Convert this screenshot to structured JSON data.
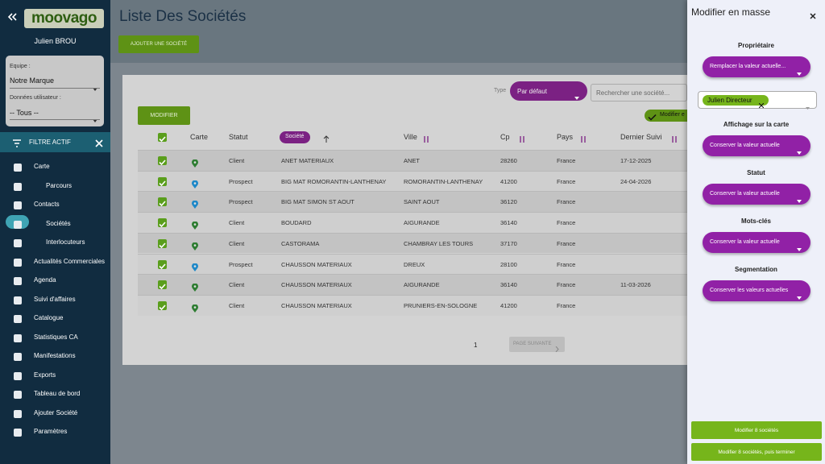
{
  "sidebar": {
    "logo": "moovago",
    "user": "Julien BROU",
    "team_label": "Equipe :",
    "team_value": "Notre Marque",
    "user_data_label": "Données utilisateur :",
    "user_data_value": "-- Tous --",
    "filter": "FILTRE ACTIF",
    "menu": [
      {
        "label": "Carte",
        "sub": false
      },
      {
        "label": "Parcours",
        "sub": true
      },
      {
        "label": "Contacts",
        "sub": false
      },
      {
        "label": "Sociétés",
        "sub": true,
        "active": true
      },
      {
        "label": "Interlocuteurs",
        "sub": true
      },
      {
        "label": "Actualités Commerciales",
        "sub": false
      },
      {
        "label": "Agenda",
        "sub": false
      },
      {
        "label": "Suivi d'affaires",
        "sub": false
      },
      {
        "label": "Catalogue",
        "sub": false
      },
      {
        "label": "Statistiques CA",
        "sub": false
      },
      {
        "label": "Manifestations",
        "sub": false
      },
      {
        "label": "Exports",
        "sub": false
      },
      {
        "label": "Tableau de bord",
        "sub": false
      },
      {
        "label": "Ajouter Société",
        "sub": false
      },
      {
        "label": "Paramètres",
        "sub": false
      }
    ]
  },
  "header": {
    "title": "Liste Des Sociétés",
    "add_button": "AJOUTER UNE SOCIÉTÉ"
  },
  "toolbar": {
    "type_label": "Type",
    "type_value": "Par défaut",
    "search_placeholder": "Rechercher une société...",
    "modify_button": "MODIFIER",
    "modify_chip": "Modifier e"
  },
  "table": {
    "columns": [
      "Carte",
      "Statut",
      "Société",
      "Ville",
      "Cp",
      "Pays",
      "Dernier Suivi"
    ],
    "rows": [
      {
        "status": "Client",
        "company": "ANET MATERIAUX",
        "city": "ANET",
        "cp": "28260",
        "country": "France",
        "last": "17-12-2025",
        "pin": "#2e7d32"
      },
      {
        "status": "Prospect",
        "company": "BIG MAT ROMORANTIN-LANTHENAY",
        "city": "ROMORANTIN-LANTHENAY",
        "cp": "41200",
        "country": "France",
        "last": "24-04-2026",
        "pin": "#1e88c8"
      },
      {
        "status": "Prospect",
        "company": "BIG MAT SIMON ST AOUT",
        "city": "SAINT AOUT",
        "cp": "36120",
        "country": "France",
        "last": null,
        "pin": "#1e88c8"
      },
      {
        "status": "Client",
        "company": "BOUDARD",
        "city": "AIGURANDE",
        "cp": "36140",
        "country": "France",
        "last": null,
        "pin": "#2e7d32"
      },
      {
        "status": "Client",
        "company": "CASTORAMA",
        "city": "CHAMBRAY LES TOURS",
        "cp": "37170",
        "country": "France",
        "last": null,
        "pin": "#2e7d32"
      },
      {
        "status": "Prospect",
        "company": "CHAUSSON MATERIAUX",
        "city": "DREUX",
        "cp": "28100",
        "country": "France",
        "last": null,
        "pin": "#1e88c8"
      },
      {
        "status": "Client",
        "company": "CHAUSSON MATERIAUX",
        "city": "AIGURANDE",
        "cp": "36140",
        "country": "France",
        "last": "11-03-2026",
        "pin": "#2e7d32"
      },
      {
        "status": "Client",
        "company": "CHAUSSON MATERIAUX",
        "city": "PRUNIERS-EN-SOLOGNE",
        "cp": "41200",
        "country": "France",
        "last": null,
        "pin": "#2e7d32"
      }
    ]
  },
  "pagination": {
    "page": "1",
    "next": "PAGE SUIVANTE"
  },
  "panel": {
    "title": "Modifier en masse",
    "sections": [
      {
        "label": "Propriétaire",
        "button": "Remplacer la valeur actuelle...",
        "chip": "Julien Directeur"
      },
      {
        "label": "Affichage sur la carte",
        "button": "Conserver la valeur actuelle"
      },
      {
        "label": "Statut",
        "button": "Conserver la valeur actuelle"
      },
      {
        "label": "Mots-clés",
        "button": "Conserver la valeur actuelle"
      },
      {
        "label": "Segmentation",
        "button": "Conserver les valeurs actuelles"
      }
    ],
    "submit": "Modifier 8 sociétés",
    "submit_finish": "Modifier 8 sociétés, puis terminer"
  }
}
